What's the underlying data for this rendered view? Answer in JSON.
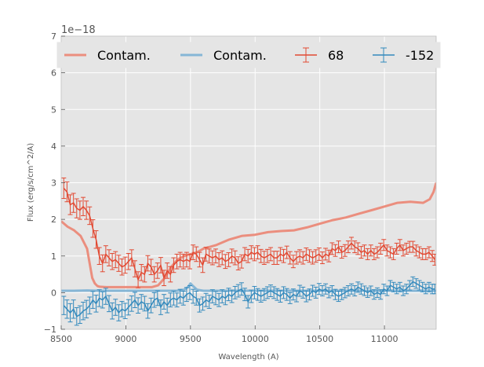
{
  "chart_data": {
    "type": "line",
    "title": "",
    "xlabel": "Wavelength (A)",
    "ylabel": "Flux (erg/s/cm^2/A)",
    "y_offset_label": "1e−18",
    "xlim": [
      8500,
      11400
    ],
    "ylim": [
      -1,
      7
    ],
    "x_ticks": [
      8500,
      9000,
      9500,
      10000,
      10500,
      11000
    ],
    "x_tick_labels": [
      "8500",
      "9000",
      "9500",
      "10000",
      "10500",
      "11000"
    ],
    "y_ticks": [
      -1,
      0,
      1,
      2,
      3,
      4,
      5,
      6,
      7
    ],
    "y_tick_labels": [
      "−1",
      "0",
      "1",
      "2",
      "3",
      "4",
      "5",
      "6",
      "7"
    ],
    "grid": true,
    "legend_position": "top",
    "colors": {
      "red": "#e24a33",
      "red_light": "#eb8e7e",
      "blue": "#348abd",
      "blue_light": "#86b6d6",
      "background": "#e5e5e5",
      "grid": "#ffffff"
    },
    "legend": [
      {
        "label": "Contam.",
        "kind": "line",
        "color": "#eb8e7e"
      },
      {
        "label": "Contam.",
        "kind": "line",
        "color": "#86b6d6"
      },
      {
        "label": "68",
        "kind": "errorbar",
        "color": "#e24a33"
      },
      {
        "label": "-152",
        "kind": "errorbar",
        "color": "#348abd"
      }
    ],
    "series": [
      {
        "name": "Contam.",
        "kind": "line",
        "color": "#eb8e7e",
        "x": [
          8500,
          8550,
          8600,
          8650,
          8700,
          8720,
          8740,
          8760,
          8780,
          8800,
          8850,
          8900,
          9000,
          9100,
          9200,
          9250,
          9300,
          9350,
          9400,
          9450,
          9500,
          9550,
          9600,
          9700,
          9800,
          9900,
          10000,
          10100,
          10200,
          10300,
          10400,
          10500,
          10600,
          10700,
          10800,
          10900,
          11000,
          11100,
          11200,
          11300,
          11350,
          11380,
          11400
        ],
        "y": [
          1.95,
          1.8,
          1.7,
          1.55,
          1.2,
          0.8,
          0.4,
          0.25,
          0.18,
          0.16,
          0.15,
          0.15,
          0.15,
          0.15,
          0.15,
          0.2,
          0.4,
          0.7,
          0.9,
          1.0,
          1.05,
          1.1,
          1.2,
          1.3,
          1.45,
          1.55,
          1.58,
          1.65,
          1.68,
          1.7,
          1.78,
          1.88,
          1.98,
          2.05,
          2.15,
          2.25,
          2.35,
          2.45,
          2.48,
          2.45,
          2.55,
          2.75,
          3.0
        ]
      },
      {
        "name": "Contam.",
        "kind": "line",
        "color": "#86b6d6",
        "x": [
          8500,
          8600,
          8700,
          8800,
          8900,
          9000,
          9100,
          9200,
          9300,
          9400,
          9450,
          9480,
          9500,
          9520,
          9550,
          9600,
          9700,
          9800,
          9900,
          10000,
          10200,
          10400,
          10600,
          10800,
          11000,
          11200,
          11400
        ],
        "y": [
          0.05,
          0.05,
          0.06,
          0.05,
          0.05,
          0.05,
          0.05,
          0.05,
          0.05,
          0.05,
          0.08,
          0.15,
          0.25,
          0.18,
          0.08,
          0.05,
          0.05,
          0.05,
          0.05,
          0.05,
          0.05,
          0.05,
          0.05,
          0.05,
          0.05,
          0.05,
          0.05
        ]
      },
      {
        "name": "68",
        "kind": "errorbar",
        "color": "#e24a33",
        "x": [
          8520,
          8545,
          8570,
          8595,
          8620,
          8645,
          8670,
          8695,
          8720,
          8745,
          8770,
          8795,
          8820,
          8845,
          8870,
          8895,
          8920,
          8945,
          8970,
          8995,
          9020,
          9045,
          9070,
          9095,
          9120,
          9145,
          9170,
          9195,
          9220,
          9245,
          9270,
          9295,
          9320,
          9345,
          9370,
          9395,
          9420,
          9445,
          9470,
          9495,
          9520,
          9545,
          9570,
          9595,
          9620,
          9645,
          9670,
          9695,
          9720,
          9745,
          9770,
          9795,
          9820,
          9845,
          9870,
          9895,
          9920,
          9945,
          9970,
          9995,
          10020,
          10045,
          10070,
          10095,
          10120,
          10145,
          10170,
          10195,
          10220,
          10245,
          10270,
          10295,
          10320,
          10345,
          10370,
          10395,
          10420,
          10445,
          10470,
          10495,
          10520,
          10545,
          10570,
          10595,
          10620,
          10645,
          10670,
          10695,
          10720,
          10745,
          10770,
          10795,
          10820,
          10845,
          10870,
          10895,
          10920,
          10945,
          10970,
          10995,
          11020,
          11045,
          11070,
          11095,
          11120,
          11145,
          11170,
          11195,
          11220,
          11245,
          11270,
          11295,
          11320,
          11345,
          11370,
          11390
        ],
        "y": [
          2.85,
          2.75,
          2.4,
          2.45,
          2.3,
          2.25,
          2.35,
          2.25,
          2.1,
          1.75,
          1.45,
          1.0,
          0.8,
          1.05,
          0.95,
          0.85,
          0.9,
          0.8,
          0.7,
          0.75,
          0.85,
          0.95,
          0.65,
          0.35,
          0.55,
          0.5,
          0.8,
          0.7,
          0.5,
          0.6,
          0.75,
          0.4,
          0.6,
          0.5,
          0.75,
          0.85,
          0.9,
          0.85,
          0.9,
          0.85,
          1.1,
          1.05,
          0.9,
          0.75,
          1.05,
          1.0,
          0.95,
          1.0,
          0.9,
          0.95,
          0.85,
          0.9,
          1.0,
          0.95,
          0.8,
          0.85,
          1.05,
          1.0,
          1.1,
          1.05,
          1.1,
          1.0,
          0.95,
          1.0,
          1.05,
          0.95,
          0.95,
          1.05,
          1.0,
          1.1,
          0.95,
          0.85,
          0.95,
          1.0,
          0.95,
          1.05,
          1.0,
          0.95,
          1.0,
          1.05,
          0.95,
          1.05,
          1.0,
          1.2,
          1.15,
          1.25,
          1.1,
          1.15,
          1.25,
          1.35,
          1.25,
          1.2,
          1.1,
          1.15,
          1.05,
          1.15,
          1.05,
          1.1,
          1.2,
          1.3,
          1.15,
          1.1,
          1.05,
          1.2,
          1.3,
          1.15,
          1.2,
          1.25,
          1.25,
          1.15,
          1.1,
          1.05,
          1.05,
          1.1,
          1.0,
          0.9
        ],
        "err": [
          0.28,
          0.27,
          0.27,
          0.26,
          0.26,
          0.25,
          0.25,
          0.25,
          0.24,
          0.24,
          0.24,
          0.23,
          0.23,
          0.23,
          0.22,
          0.22,
          0.22,
          0.22,
          0.22,
          0.22,
          0.22,
          0.22,
          0.22,
          0.22,
          0.22,
          0.21,
          0.21,
          0.21,
          0.21,
          0.21,
          0.21,
          0.21,
          0.21,
          0.21,
          0.2,
          0.2,
          0.2,
          0.2,
          0.2,
          0.2,
          0.2,
          0.2,
          0.2,
          0.2,
          0.19,
          0.19,
          0.19,
          0.19,
          0.19,
          0.19,
          0.19,
          0.19,
          0.19,
          0.19,
          0.18,
          0.18,
          0.18,
          0.18,
          0.18,
          0.18,
          0.18,
          0.18,
          0.18,
          0.18,
          0.18,
          0.18,
          0.18,
          0.18,
          0.18,
          0.17,
          0.17,
          0.17,
          0.17,
          0.17,
          0.17,
          0.17,
          0.17,
          0.17,
          0.17,
          0.17,
          0.16,
          0.16,
          0.16,
          0.16,
          0.16,
          0.16,
          0.16,
          0.16,
          0.16,
          0.16,
          0.16,
          0.16,
          0.16,
          0.15,
          0.15,
          0.15,
          0.15,
          0.15,
          0.15,
          0.15,
          0.15,
          0.15,
          0.15,
          0.15,
          0.15,
          0.15,
          0.15,
          0.15,
          0.15,
          0.15,
          0.15,
          0.15,
          0.15,
          0.15,
          0.15,
          0.15
        ]
      },
      {
        "name": "-152",
        "kind": "errorbar",
        "color": "#348abd",
        "x": [
          8520,
          8545,
          8570,
          8595,
          8620,
          8645,
          8670,
          8695,
          8720,
          8745,
          8770,
          8795,
          8820,
          8845,
          8870,
          8895,
          8920,
          8945,
          8970,
          8995,
          9020,
          9045,
          9070,
          9095,
          9120,
          9145,
          9170,
          9195,
          9220,
          9245,
          9270,
          9295,
          9320,
          9345,
          9370,
          9395,
          9420,
          9445,
          9470,
          9495,
          9520,
          9545,
          9570,
          9595,
          9620,
          9645,
          9670,
          9695,
          9720,
          9745,
          9770,
          9795,
          9820,
          9845,
          9870,
          9895,
          9920,
          9945,
          9970,
          9995,
          10020,
          10045,
          10070,
          10095,
          10120,
          10145,
          10170,
          10195,
          10220,
          10245,
          10270,
          10295,
          10320,
          10345,
          10370,
          10395,
          10420,
          10445,
          10470,
          10495,
          10520,
          10545,
          10570,
          10595,
          10620,
          10645,
          10670,
          10695,
          10720,
          10745,
          10770,
          10795,
          10820,
          10845,
          10870,
          10895,
          10920,
          10945,
          10970,
          10995,
          11020,
          11045,
          11070,
          11095,
          11120,
          11145,
          11170,
          11195,
          11220,
          11245,
          11270,
          11295,
          11320,
          11345,
          11370,
          11390
        ],
        "y": [
          -0.35,
          -0.45,
          -0.55,
          -0.45,
          -0.65,
          -0.6,
          -0.5,
          -0.45,
          -0.35,
          -0.2,
          -0.3,
          -0.15,
          -0.2,
          -0.1,
          -0.3,
          -0.5,
          -0.4,
          -0.55,
          -0.45,
          -0.5,
          -0.4,
          -0.3,
          -0.2,
          -0.35,
          -0.25,
          -0.3,
          -0.5,
          -0.35,
          -0.2,
          -0.15,
          -0.4,
          -0.25,
          -0.35,
          -0.2,
          -0.15,
          -0.2,
          -0.1,
          -0.15,
          -0.05,
          0.0,
          -0.1,
          -0.15,
          -0.35,
          -0.3,
          -0.2,
          -0.25,
          -0.1,
          -0.15,
          -0.2,
          -0.1,
          -0.15,
          -0.05,
          -0.1,
          0.0,
          0.05,
          0.1,
          -0.05,
          -0.25,
          -0.1,
          0.0,
          -0.05,
          -0.1,
          -0.05,
          0.0,
          0.05,
          0.0,
          -0.05,
          -0.1,
          0.0,
          -0.05,
          -0.15,
          -0.05,
          -0.1,
          0.05,
          0.0,
          -0.1,
          -0.05,
          0.05,
          0.0,
          0.1,
          0.05,
          0.1,
          0.0,
          0.05,
          -0.05,
          -0.1,
          -0.05,
          0.0,
          0.05,
          0.1,
          0.05,
          0.15,
          0.1,
          0.05,
          0.0,
          0.05,
          -0.05,
          0.0,
          -0.05,
          0.1,
          0.05,
          0.2,
          0.15,
          0.1,
          0.15,
          0.05,
          0.1,
          0.2,
          0.3,
          0.25,
          0.2,
          0.15,
          0.1,
          0.15,
          0.1,
          0.1
        ],
        "err": [
          0.25,
          0.25,
          0.25,
          0.25,
          0.24,
          0.24,
          0.24,
          0.24,
          0.23,
          0.23,
          0.23,
          0.23,
          0.22,
          0.22,
          0.22,
          0.22,
          0.22,
          0.22,
          0.21,
          0.21,
          0.21,
          0.21,
          0.21,
          0.21,
          0.2,
          0.2,
          0.2,
          0.2,
          0.2,
          0.2,
          0.2,
          0.2,
          0.2,
          0.19,
          0.19,
          0.19,
          0.19,
          0.19,
          0.19,
          0.19,
          0.19,
          0.19,
          0.18,
          0.18,
          0.18,
          0.18,
          0.18,
          0.18,
          0.18,
          0.18,
          0.18,
          0.17,
          0.17,
          0.17,
          0.17,
          0.17,
          0.17,
          0.17,
          0.17,
          0.17,
          0.16,
          0.16,
          0.16,
          0.16,
          0.16,
          0.16,
          0.16,
          0.16,
          0.16,
          0.16,
          0.15,
          0.15,
          0.15,
          0.15,
          0.15,
          0.15,
          0.15,
          0.15,
          0.15,
          0.15,
          0.14,
          0.14,
          0.14,
          0.14,
          0.14,
          0.14,
          0.14,
          0.14,
          0.14,
          0.14,
          0.14,
          0.14,
          0.14,
          0.13,
          0.13,
          0.13,
          0.13,
          0.13,
          0.13,
          0.13,
          0.13,
          0.13,
          0.13,
          0.13,
          0.13,
          0.13,
          0.13,
          0.13,
          0.13,
          0.13,
          0.13,
          0.13,
          0.13,
          0.13,
          0.13,
          0.13
        ]
      }
    ]
  }
}
